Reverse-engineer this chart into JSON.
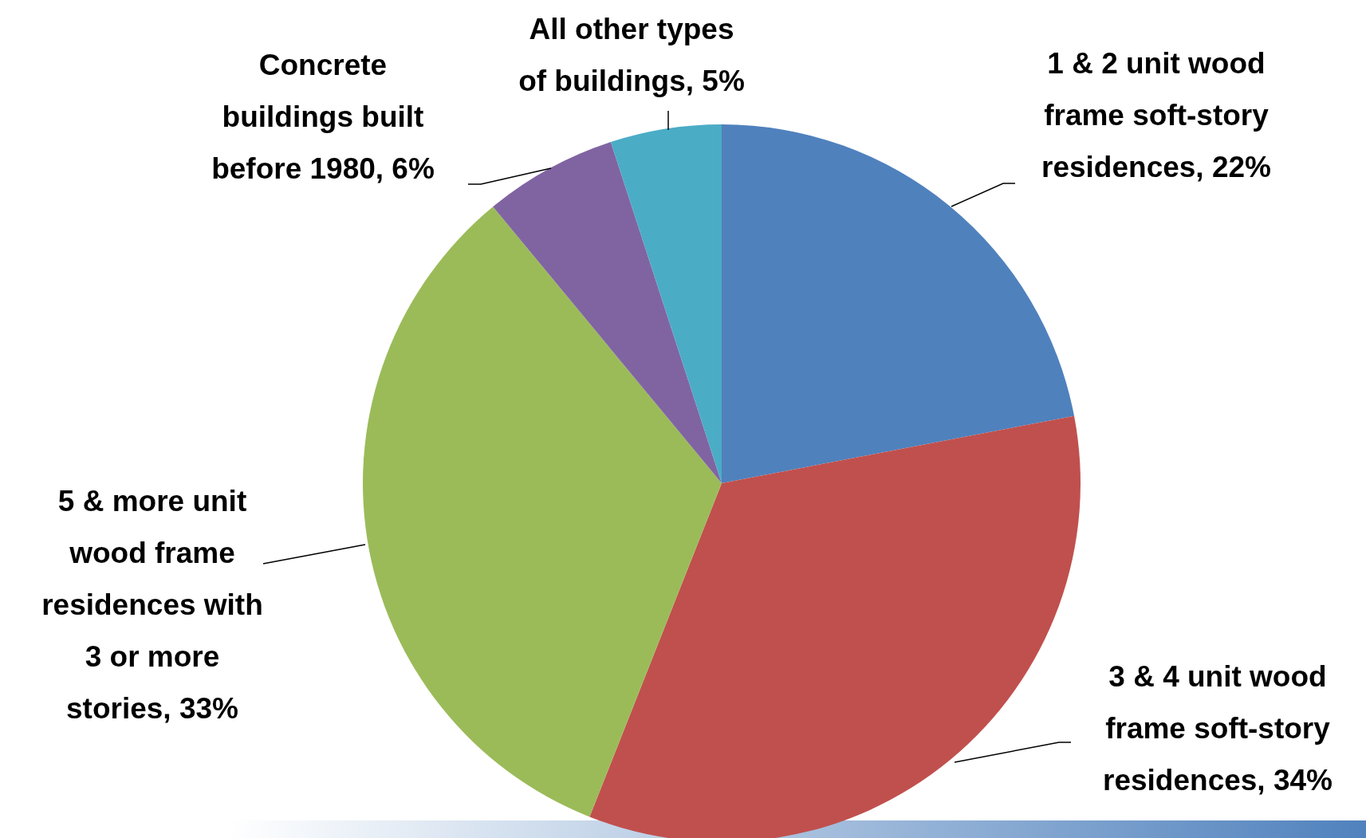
{
  "chart_data": {
    "type": "pie",
    "categories": [
      "1 & 2 unit wood frame soft-story residences",
      "3 & 4 unit wood frame soft-story residences",
      "5 & more unit wood frame residences with 3 or more stories",
      "Concrete buildings built before 1980",
      "All other types of buildings"
    ],
    "values": [
      22,
      34,
      33,
      6,
      5
    ],
    "value_labels": [
      "22%",
      "34%",
      "33%",
      "6%",
      "5%"
    ],
    "colors": [
      "#4f81bd",
      "#c0504d",
      "#9bbb59",
      "#8064a2",
      "#4bacc6"
    ]
  }
}
